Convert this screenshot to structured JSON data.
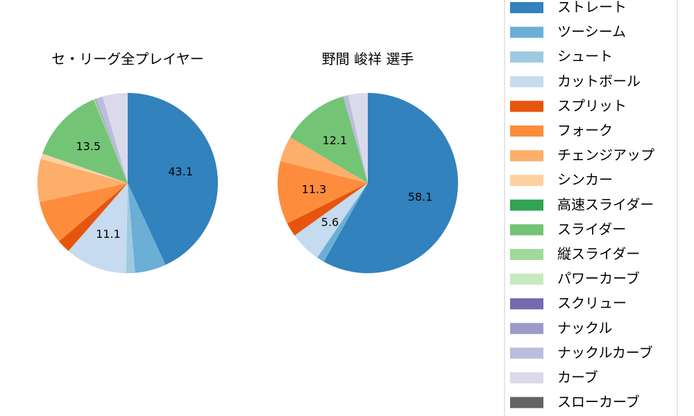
{
  "chart_data": [
    {
      "type": "pie",
      "title": "セ・リーグ全プレイヤー",
      "categories": [
        "ストレート",
        "ツーシーム",
        "シュート",
        "カットボール",
        "スプリット",
        "フォーク",
        "チェンジアップ",
        "シンカー",
        "高速スライダー",
        "スライダー",
        "縦スライダー",
        "パワーカーブ",
        "スクリュー",
        "ナックル",
        "ナックルカーブ",
        "カーブ",
        "スローカーブ"
      ],
      "values": [
        43.1,
        5.6,
        1.6,
        11.1,
        2.4,
        7.8,
        7.7,
        1.0,
        0.0,
        13.5,
        0.3,
        0.0,
        0.0,
        0.2,
        1.2,
        4.5,
        0.0
      ],
      "labels": [
        "43.1",
        "",
        "",
        "11.1",
        "",
        "",
        "",
        "",
        "",
        "13.5",
        "",
        "",
        "",
        "",
        "",
        "",
        ""
      ]
    },
    {
      "type": "pie",
      "title": "野間 峻祥  選手",
      "categories": [
        "ストレート",
        "ツーシーム",
        "シュート",
        "カットボール",
        "スプリット",
        "フォーク",
        "チェンジアップ",
        "シンカー",
        "高速スライダー",
        "スライダー",
        "縦スライダー",
        "パワーカーブ",
        "スクリュー",
        "ナックル",
        "ナックルカーブ",
        "カーブ",
        "スローカーブ"
      ],
      "values": [
        58.1,
        1.4,
        0.0,
        5.6,
        2.5,
        11.3,
        4.6,
        0.0,
        0.0,
        12.1,
        0.0,
        0.0,
        0.0,
        0.0,
        0.9,
        3.5,
        0.0
      ],
      "labels": [
        "58.1",
        "",
        "",
        "5.6",
        "",
        "11.3",
        "",
        "",
        "",
        "12.1",
        "",
        "",
        "",
        "",
        "",
        "",
        ""
      ]
    }
  ],
  "legend": {
    "items": [
      {
        "label": "ストレート",
        "color": "#3182bd"
      },
      {
        "label": "ツーシーム",
        "color": "#6baed6"
      },
      {
        "label": "シュート",
        "color": "#9ecae1"
      },
      {
        "label": "カットボール",
        "color": "#c6dbef"
      },
      {
        "label": "スプリット",
        "color": "#e6550d"
      },
      {
        "label": "フォーク",
        "color": "#fd8d3c"
      },
      {
        "label": "チェンジアップ",
        "color": "#fdae6b"
      },
      {
        "label": "シンカー",
        "color": "#fdd0a2"
      },
      {
        "label": "高速スライダー",
        "color": "#31a354"
      },
      {
        "label": "スライダー",
        "color": "#74c476"
      },
      {
        "label": "縦スライダー",
        "color": "#a1d99b"
      },
      {
        "label": "パワーカーブ",
        "color": "#c7e9c0"
      },
      {
        "label": "スクリュー",
        "color": "#756bb1"
      },
      {
        "label": "ナックル",
        "color": "#9e9ac8"
      },
      {
        "label": "ナックルカーブ",
        "color": "#bcbddc"
      },
      {
        "label": "カーブ",
        "color": "#dadaeb"
      },
      {
        "label": "スローカーブ",
        "color": "#636363"
      }
    ]
  }
}
